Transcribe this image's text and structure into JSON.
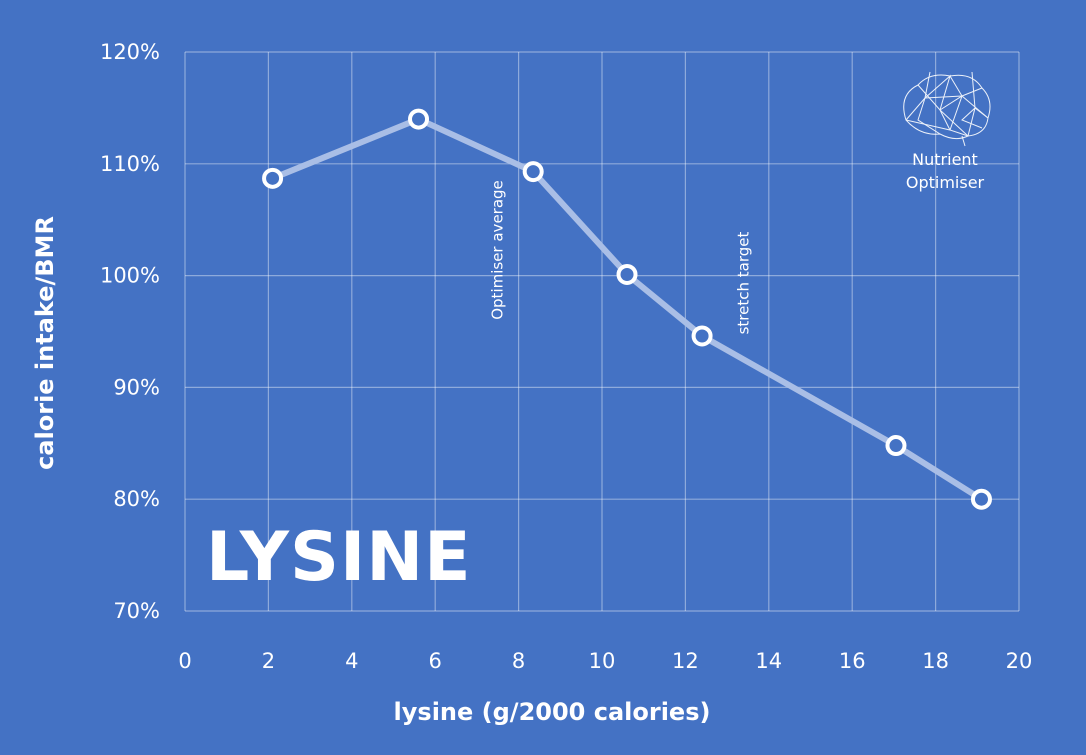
{
  "chart_data": {
    "type": "line",
    "title": "LYSINE",
    "xlabel": "lysine (g/2000 calories)",
    "ylabel": "calorie intake/BMR",
    "xlim": [
      0,
      20
    ],
    "ylim": [
      70,
      120
    ],
    "x_ticks": [
      "0",
      "2",
      "4",
      "6",
      "8",
      "10",
      "12",
      "14",
      "16",
      "18",
      "20"
    ],
    "y_ticks": [
      "70%",
      "80%",
      "90%",
      "100%",
      "110%",
      "120%"
    ],
    "grid": true,
    "series": [
      {
        "x": [
          2.1,
          5.6,
          8.35,
          10.6,
          12.4,
          17.05,
          19.1
        ],
        "y": [
          108.7,
          114.0,
          109.3,
          100.1,
          94.6,
          84.8,
          80.0
        ]
      }
    ],
    "annotations": [
      {
        "text": "Optimiser average",
        "x": 8.0
      },
      {
        "text": "stretch target",
        "x": 13.9
      }
    ],
    "line_color": "#A9BEE6",
    "marker_stroke": "#ffffff",
    "marker_fill": "#4472C4",
    "background": "#4472C4"
  },
  "logo": {
    "line1": "Nutrient",
    "line2": "Optimiser"
  }
}
